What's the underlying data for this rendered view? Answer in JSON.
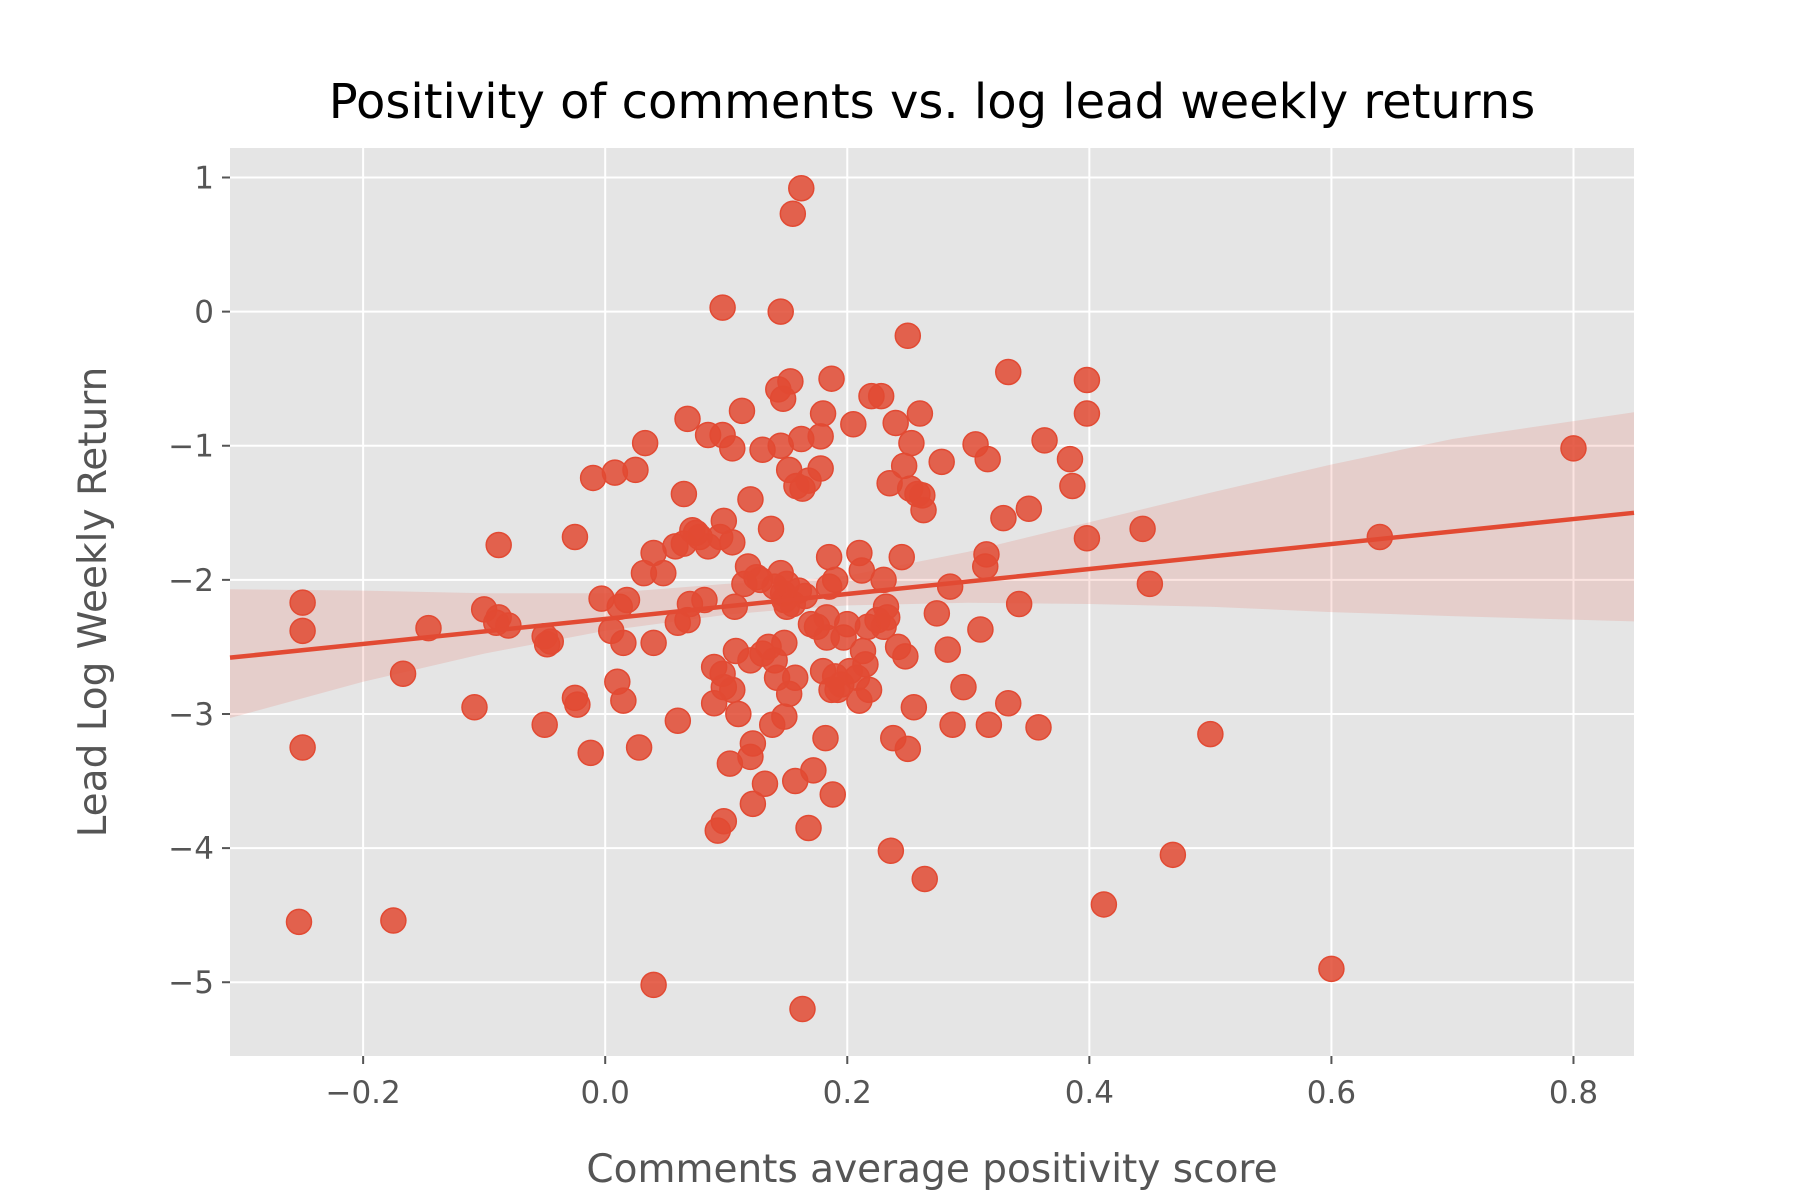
{
  "chart_data": {
    "type": "scatter",
    "title": "Positivity of comments vs. log lead weekly returns",
    "xlabel": "Comments average positivity score",
    "ylabel": "Lead Log Weekly Return",
    "xlim": [
      -0.31,
      0.85
    ],
    "ylim": [
      -5.55,
      1.22
    ],
    "xticks": [
      -0.2,
      0.0,
      0.2,
      0.4,
      0.6,
      0.8
    ],
    "xtick_labels": [
      "−0.2",
      "0.0",
      "0.2",
      "0.4",
      "0.6",
      "0.8"
    ],
    "yticks": [
      1,
      0,
      -1,
      -2,
      -3,
      -4,
      -5
    ],
    "ytick_labels": [
      "1",
      "0",
      "−1",
      "−2",
      "−3",
      "−4",
      "−5"
    ],
    "grid": true,
    "style": "ggplot",
    "colors": {
      "series": "#E24A33",
      "background": "#E5E5E5",
      "grid": "#FFFFFF"
    },
    "regression": {
      "x_range": [
        -0.31,
        0.85
      ],
      "line_y": [
        -2.58,
        -1.5
      ],
      "ci_upper_x": [
        -0.31,
        -0.2,
        -0.1,
        0.0,
        0.1,
        0.15,
        0.2,
        0.3,
        0.4,
        0.5,
        0.6,
        0.7,
        0.85
      ],
      "ci_upper_y": [
        -2.07,
        -2.08,
        -2.1,
        -2.1,
        -2.03,
        -2.01,
        -1.97,
        -1.79,
        -1.57,
        -1.35,
        -1.14,
        -0.95,
        -0.75
      ],
      "ci_lower_x": [
        -0.31,
        -0.2,
        -0.1,
        0.0,
        0.1,
        0.15,
        0.2,
        0.3,
        0.4,
        0.5,
        0.6,
        0.7,
        0.85
      ],
      "ci_lower_y": [
        -3.03,
        -2.76,
        -2.55,
        -2.38,
        -2.26,
        -2.22,
        -2.19,
        -2.17,
        -2.18,
        -2.2,
        -2.24,
        -2.27,
        -2.31
      ]
    },
    "points": [
      {
        "x": -0.25,
        "y": -2.17
      },
      {
        "x": -0.25,
        "y": -2.38
      },
      {
        "x": -0.25,
        "y": -3.25
      },
      {
        "x": -0.253,
        "y": -4.55
      },
      {
        "x": -0.175,
        "y": -4.54
      },
      {
        "x": -0.167,
        "y": -2.7
      },
      {
        "x": -0.146,
        "y": -2.36
      },
      {
        "x": -0.108,
        "y": -2.95
      },
      {
        "x": -0.1,
        "y": -2.22
      },
      {
        "x": -0.09,
        "y": -2.32
      },
      {
        "x": -0.088,
        "y": -2.28
      },
      {
        "x": -0.08,
        "y": -2.34
      },
      {
        "x": -0.088,
        "y": -1.74
      },
      {
        "x": -0.05,
        "y": -2.42
      },
      {
        "x": -0.048,
        "y": -2.48
      },
      {
        "x": -0.045,
        "y": -2.46
      },
      {
        "x": -0.05,
        "y": -3.08
      },
      {
        "x": -0.025,
        "y": -2.88
      },
      {
        "x": -0.023,
        "y": -2.93
      },
      {
        "x": -0.025,
        "y": -1.68
      },
      {
        "x": -0.012,
        "y": -3.29
      },
      {
        "x": -0.01,
        "y": -1.24
      },
      {
        "x": -0.003,
        "y": -2.14
      },
      {
        "x": 0.005,
        "y": -2.38
      },
      {
        "x": 0.008,
        "y": -1.2
      },
      {
        "x": 0.01,
        "y": -2.76
      },
      {
        "x": 0.012,
        "y": -2.2
      },
      {
        "x": 0.015,
        "y": -2.9
      },
      {
        "x": 0.018,
        "y": -2.15
      },
      {
        "x": 0.015,
        "y": -2.47
      },
      {
        "x": 0.025,
        "y": -1.18
      },
      {
        "x": 0.028,
        "y": -3.25
      },
      {
        "x": 0.033,
        "y": -0.98
      },
      {
        "x": 0.032,
        "y": -1.95
      },
      {
        "x": 0.04,
        "y": -1.8
      },
      {
        "x": 0.04,
        "y": -2.47
      },
      {
        "x": 0.04,
        "y": -5.02
      },
      {
        "x": 0.048,
        "y": -1.95
      },
      {
        "x": 0.058,
        "y": -1.75
      },
      {
        "x": 0.06,
        "y": -2.32
      },
      {
        "x": 0.06,
        "y": -3.05
      },
      {
        "x": 0.065,
        "y": -1.73
      },
      {
        "x": 0.065,
        "y": -1.36
      },
      {
        "x": 0.068,
        "y": -0.8
      },
      {
        "x": 0.068,
        "y": -2.3
      },
      {
        "x": 0.07,
        "y": -2.18
      },
      {
        "x": 0.072,
        "y": -1.63
      },
      {
        "x": 0.075,
        "y": -1.65
      },
      {
        "x": 0.078,
        "y": -1.68
      },
      {
        "x": 0.082,
        "y": -2.15
      },
      {
        "x": 0.085,
        "y": -0.92
      },
      {
        "x": 0.085,
        "y": -1.75
      },
      {
        "x": 0.09,
        "y": -2.65
      },
      {
        "x": 0.09,
        "y": -2.92
      },
      {
        "x": 0.093,
        "y": -3.87
      },
      {
        "x": 0.097,
        "y": -0.92
      },
      {
        "x": 0.095,
        "y": -1.68
      },
      {
        "x": 0.097,
        "y": 0.03
      },
      {
        "x": 0.098,
        "y": -1.56
      },
      {
        "x": 0.097,
        "y": -2.7
      },
      {
        "x": 0.098,
        "y": -2.8
      },
      {
        "x": 0.098,
        "y": -3.8
      },
      {
        "x": 0.103,
        "y": -3.37
      },
      {
        "x": 0.105,
        "y": -1.72
      },
      {
        "x": 0.105,
        "y": -1.02
      },
      {
        "x": 0.105,
        "y": -2.82
      },
      {
        "x": 0.107,
        "y": -2.2
      },
      {
        "x": 0.108,
        "y": -2.53
      },
      {
        "x": 0.11,
        "y": -3.0
      },
      {
        "x": 0.113,
        "y": -0.74
      },
      {
        "x": 0.115,
        "y": -2.03
      },
      {
        "x": 0.118,
        "y": -1.9
      },
      {
        "x": 0.12,
        "y": -1.4
      },
      {
        "x": 0.12,
        "y": -2.6
      },
      {
        "x": 0.12,
        "y": -3.32
      },
      {
        "x": 0.122,
        "y": -3.22
      },
      {
        "x": 0.122,
        "y": -3.67
      },
      {
        "x": 0.125,
        "y": -1.98
      },
      {
        "x": 0.128,
        "y": -2.0
      },
      {
        "x": 0.13,
        "y": -1.03
      },
      {
        "x": 0.13,
        "y": -2.55
      },
      {
        "x": 0.132,
        "y": -3.52
      },
      {
        "x": 0.135,
        "y": -2.5
      },
      {
        "x": 0.137,
        "y": -1.62
      },
      {
        "x": 0.138,
        "y": -3.08
      },
      {
        "x": 0.14,
        "y": -2.05
      },
      {
        "x": 0.14,
        "y": -2.6
      },
      {
        "x": 0.142,
        "y": -2.73
      },
      {
        "x": 0.143,
        "y": -0.58
      },
      {
        "x": 0.145,
        "y": -1.0
      },
      {
        "x": 0.145,
        "y": 0.0
      },
      {
        "x": 0.147,
        "y": -0.65
      },
      {
        "x": 0.145,
        "y": -1.95
      },
      {
        "x": 0.147,
        "y": -2.1
      },
      {
        "x": 0.148,
        "y": -2.15
      },
      {
        "x": 0.148,
        "y": -2.47
      },
      {
        "x": 0.148,
        "y": -3.02
      },
      {
        "x": 0.15,
        "y": -2.2
      },
      {
        "x": 0.15,
        "y": -2.03
      },
      {
        "x": 0.152,
        "y": -1.18
      },
      {
        "x": 0.152,
        "y": -2.85
      },
      {
        "x": 0.153,
        "y": -0.52
      },
      {
        "x": 0.155,
        "y": 0.73
      },
      {
        "x": 0.155,
        "y": -2.18
      },
      {
        "x": 0.157,
        "y": -2.73
      },
      {
        "x": 0.157,
        "y": -3.5
      },
      {
        "x": 0.158,
        "y": -1.3
      },
      {
        "x": 0.16,
        "y": -2.08
      },
      {
        "x": 0.162,
        "y": 0.92
      },
      {
        "x": 0.162,
        "y": -0.95
      },
      {
        "x": 0.163,
        "y": -1.32
      },
      {
        "x": 0.163,
        "y": -5.2
      },
      {
        "x": 0.165,
        "y": -2.12
      },
      {
        "x": 0.168,
        "y": -1.26
      },
      {
        "x": 0.168,
        "y": -3.85
      },
      {
        "x": 0.17,
        "y": -2.33
      },
      {
        "x": 0.172,
        "y": -3.42
      },
      {
        "x": 0.175,
        "y": -2.35
      },
      {
        "x": 0.178,
        "y": -0.93
      },
      {
        "x": 0.178,
        "y": -1.17
      },
      {
        "x": 0.18,
        "y": -0.76
      },
      {
        "x": 0.18,
        "y": -2.68
      },
      {
        "x": 0.182,
        "y": -3.18
      },
      {
        "x": 0.183,
        "y": -2.28
      },
      {
        "x": 0.183,
        "y": -2.43
      },
      {
        "x": 0.185,
        "y": -1.83
      },
      {
        "x": 0.185,
        "y": -2.05
      },
      {
        "x": 0.187,
        "y": -0.5
      },
      {
        "x": 0.187,
        "y": -2.82
      },
      {
        "x": 0.188,
        "y": -3.6
      },
      {
        "x": 0.19,
        "y": -2.0
      },
      {
        "x": 0.19,
        "y": -2.72
      },
      {
        "x": 0.192,
        "y": -2.82
      },
      {
        "x": 0.195,
        "y": -2.78
      },
      {
        "x": 0.197,
        "y": -2.43
      },
      {
        "x": 0.2,
        "y": -2.33
      },
      {
        "x": 0.202,
        "y": -2.68
      },
      {
        "x": 0.205,
        "y": -0.84
      },
      {
        "x": 0.208,
        "y": -2.73
      },
      {
        "x": 0.21,
        "y": -1.8
      },
      {
        "x": 0.21,
        "y": -2.9
      },
      {
        "x": 0.212,
        "y": -1.93
      },
      {
        "x": 0.213,
        "y": -2.53
      },
      {
        "x": 0.215,
        "y": -2.63
      },
      {
        "x": 0.217,
        "y": -2.35
      },
      {
        "x": 0.218,
        "y": -2.82
      },
      {
        "x": 0.22,
        "y": -0.63
      },
      {
        "x": 0.225,
        "y": -2.3
      },
      {
        "x": 0.228,
        "y": -0.63
      },
      {
        "x": 0.23,
        "y": -2.35
      },
      {
        "x": 0.23,
        "y": -2.0
      },
      {
        "x": 0.232,
        "y": -2.2
      },
      {
        "x": 0.233,
        "y": -2.28
      },
      {
        "x": 0.235,
        "y": -1.28
      },
      {
        "x": 0.236,
        "y": -4.02
      },
      {
        "x": 0.238,
        "y": -3.18
      },
      {
        "x": 0.24,
        "y": -0.83
      },
      {
        "x": 0.242,
        "y": -2.5
      },
      {
        "x": 0.245,
        "y": -1.83
      },
      {
        "x": 0.247,
        "y": -1.15
      },
      {
        "x": 0.248,
        "y": -2.57
      },
      {
        "x": 0.25,
        "y": -0.18
      },
      {
        "x": 0.25,
        "y": -3.26
      },
      {
        "x": 0.252,
        "y": -1.32
      },
      {
        "x": 0.253,
        "y": -0.98
      },
      {
        "x": 0.255,
        "y": -2.95
      },
      {
        "x": 0.258,
        "y": -1.36
      },
      {
        "x": 0.26,
        "y": -0.76
      },
      {
        "x": 0.262,
        "y": -1.37
      },
      {
        "x": 0.263,
        "y": -1.48
      },
      {
        "x": 0.264,
        "y": -4.23
      },
      {
        "x": 0.274,
        "y": -2.25
      },
      {
        "x": 0.278,
        "y": -1.12
      },
      {
        "x": 0.283,
        "y": -2.52
      },
      {
        "x": 0.285,
        "y": -2.05
      },
      {
        "x": 0.287,
        "y": -3.08
      },
      {
        "x": 0.296,
        "y": -2.8
      },
      {
        "x": 0.306,
        "y": -0.99
      },
      {
        "x": 0.31,
        "y": -2.37
      },
      {
        "x": 0.314,
        "y": -1.9
      },
      {
        "x": 0.315,
        "y": -1.81
      },
      {
        "x": 0.316,
        "y": -1.1
      },
      {
        "x": 0.317,
        "y": -3.08
      },
      {
        "x": 0.329,
        "y": -1.54
      },
      {
        "x": 0.333,
        "y": -0.45
      },
      {
        "x": 0.333,
        "y": -2.92
      },
      {
        "x": 0.342,
        "y": -2.18
      },
      {
        "x": 0.35,
        "y": -1.47
      },
      {
        "x": 0.358,
        "y": -3.1
      },
      {
        "x": 0.363,
        "y": -0.96
      },
      {
        "x": 0.384,
        "y": -1.1
      },
      {
        "x": 0.386,
        "y": -1.3
      },
      {
        "x": 0.398,
        "y": -0.51
      },
      {
        "x": 0.398,
        "y": -0.76
      },
      {
        "x": 0.398,
        "y": -1.69
      },
      {
        "x": 0.412,
        "y": -4.42
      },
      {
        "x": 0.444,
        "y": -1.62
      },
      {
        "x": 0.45,
        "y": -2.03
      },
      {
        "x": 0.469,
        "y": -4.05
      },
      {
        "x": 0.5,
        "y": -3.15
      },
      {
        "x": 0.6,
        "y": -4.9
      },
      {
        "x": 0.64,
        "y": -1.68
      },
      {
        "x": 0.8,
        "y": -1.02
      }
    ]
  }
}
